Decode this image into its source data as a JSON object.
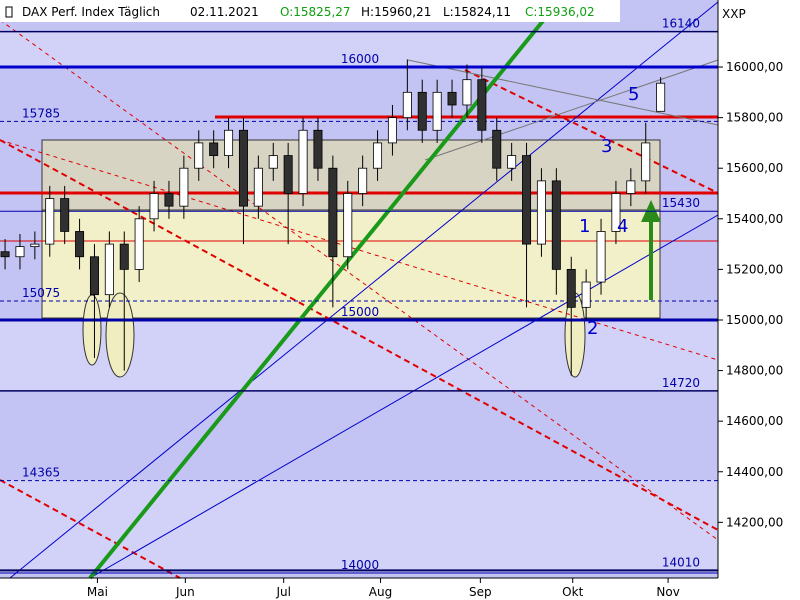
{
  "chart_data": {
    "type": "candlestick",
    "title": "DAX Perf. Index Täglich",
    "date": "02.11.2021",
    "ohlc_labels": [
      "O:15825,27",
      "H:15960,21",
      "L:15824,11",
      "C:15936,02"
    ],
    "axis_unit": "XXP",
    "categories": [
      null,
      null,
      null,
      null,
      null,
      null,
      null,
      null,
      null,
      null,
      null,
      null,
      null,
      null,
      null,
      null,
      null,
      null,
      null,
      null,
      null,
      null,
      null,
      null,
      null,
      null,
      null,
      null,
      null,
      null,
      null,
      null,
      null,
      null,
      null,
      null,
      null,
      null,
      null,
      null,
      null,
      null,
      null,
      null,
      null
    ],
    "open": [
      15270,
      15250,
      15290,
      15300,
      15480,
      15350,
      15250,
      15100,
      15300,
      15200,
      15400,
      15500,
      15450,
      15600,
      15700,
      15650,
      15750,
      15450,
      15600,
      15650,
      15500,
      15750,
      15600,
      15250,
      15500,
      15600,
      15700,
      15800,
      15900,
      15750,
      15900,
      15850,
      15950,
      15750,
      15600,
      15650,
      15300,
      15550,
      15200,
      15050,
      15150,
      15350,
      15500,
      15550,
      15825
    ],
    "high": [
      15320,
      15340,
      15350,
      15530,
      15530,
      15400,
      15300,
      15350,
      15350,
      15450,
      15550,
      15550,
      15650,
      15750,
      15750,
      15800,
      15800,
      15650,
      15700,
      15700,
      15800,
      15800,
      15650,
      15550,
      15650,
      15750,
      15850,
      16030,
      15950,
      15950,
      15950,
      16010,
      16000,
      15800,
      15700,
      15700,
      15600,
      15600,
      15250,
      15200,
      15400,
      15550,
      15600,
      15780,
      15960
    ],
    "low": [
      15200,
      15200,
      15240,
      15250,
      15300,
      15200,
      14850,
      15050,
      14800,
      15150,
      15350,
      15400,
      15400,
      15550,
      15600,
      15600,
      15300,
      15400,
      15550,
      15300,
      15450,
      15550,
      15050,
      15200,
      15450,
      15550,
      15650,
      15750,
      15700,
      15700,
      15800,
      15800,
      15700,
      15550,
      15550,
      15050,
      15250,
      15100,
      14780,
      15000,
      15100,
      15300,
      15450,
      15500,
      15824
    ],
    "close": [
      15250,
      15290,
      15300,
      15480,
      15350,
      15250,
      15100,
      15300,
      15200,
      15400,
      15500,
      15450,
      15600,
      15700,
      15650,
      15750,
      15450,
      15600,
      15650,
      15500,
      15750,
      15600,
      15250,
      15500,
      15600,
      15700,
      15800,
      15900,
      15750,
      15900,
      15850,
      15950,
      15750,
      15600,
      15650,
      15300,
      15550,
      15200,
      15050,
      15150,
      15350,
      15500,
      15550,
      15700,
      15936
    ],
    "up_color": "#ffffff",
    "down_color": "#303030",
    "xlim": [
      -0.34,
      47.85
    ],
    "xticks": [
      {
        "value": 6.2,
        "label": "Mai"
      },
      {
        "value": 12.1,
        "label": "Jun"
      },
      {
        "value": 18.7,
        "label": "Jul"
      },
      {
        "value": 25.2,
        "label": "Aug"
      },
      {
        "value": 31.9,
        "label": "Sep"
      },
      {
        "value": 38.1,
        "label": "Okt"
      },
      {
        "value": 44.5,
        "label": "Nov"
      }
    ],
    "ylim": [
      13980,
      16265
    ],
    "yticks": [
      {
        "value": 14200,
        "label": "14200,00"
      },
      {
        "value": 14400,
        "label": "14400,00"
      },
      {
        "value": 14600,
        "label": "14600,00"
      },
      {
        "value": 14800,
        "label": "14800,00"
      },
      {
        "value": 15000,
        "label": "15000,00"
      },
      {
        "value": 15200,
        "label": "15200,00"
      },
      {
        "value": 15400,
        "label": "15400,00"
      },
      {
        "value": 15600,
        "label": "15600,00"
      },
      {
        "value": 15800,
        "label": "15800,00"
      },
      {
        "value": 16000,
        "label": "16000,00"
      }
    ],
    "levels": [
      {
        "value": 16140,
        "color": "#000060",
        "style": "solid",
        "width": 1.5,
        "label_pos": "right"
      },
      {
        "value": 16000,
        "color": "#0000cc",
        "style": "solid",
        "width": 3,
        "label_pos": "center"
      },
      {
        "value": 15785,
        "color": "#0000aa",
        "style": "dashed",
        "width": 1,
        "label_pos": "left"
      },
      {
        "value": 15430,
        "color": "#0000aa",
        "style": "solid",
        "width": 1,
        "label_pos": "right"
      },
      {
        "value": 15075,
        "color": "#0000aa",
        "style": "dashed",
        "width": 1,
        "label_pos": "left"
      },
      {
        "value": 15000,
        "color": "#0000aa",
        "style": "solid",
        "width": 3,
        "label_pos": "center"
      },
      {
        "value": 14720,
        "color": "#000060",
        "style": "solid",
        "width": 1.5,
        "label_pos": "right"
      },
      {
        "value": 14365,
        "color": "#0000aa",
        "style": "dashed",
        "width": 1,
        "label_pos": "left"
      },
      {
        "value": 14010,
        "color": "#000060",
        "style": "solid",
        "width": 2,
        "label_pos": "right"
      },
      {
        "value": 14000,
        "color": "#0000aa",
        "style": "solid",
        "width": 1,
        "label_pos": "center"
      }
    ],
    "wave_labels": [
      "5",
      "3",
      "1",
      "4",
      "2"
    ]
  }
}
